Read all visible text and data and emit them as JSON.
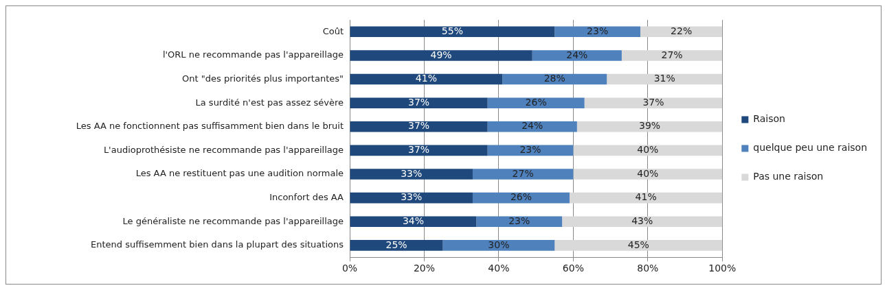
{
  "chart_data": {
    "type": "bar",
    "orientation": "horizontal",
    "stacked": true,
    "categories": [
      "Coût",
      "l'ORL ne recommande pas l'appareillage",
      "Ont \"des priorités plus importantes\"",
      "La surdité n'est pas assez sévère",
      "Les AA ne fonctionnent pas suffisamment bien dans le bruit",
      "L'audioprothésiste ne recommande pas l'appareillage",
      "Les AA ne restituent pas une audition normale",
      "Inconfort des AA",
      "Le généraliste ne recommande pas l'appareillage",
      "Entend suffisemment bien dans la plupart des situations"
    ],
    "series": [
      {
        "name": "Raison",
        "color": "#1f497d",
        "values": [
          55,
          49,
          41,
          37,
          37,
          37,
          33,
          33,
          34,
          25
        ],
        "value_labels": [
          "55%",
          "49%",
          "41%",
          "37%",
          "37%",
          "37%",
          "33%",
          "33%",
          "34%",
          "25%"
        ]
      },
      {
        "name": "quelque peu une raison",
        "color": "#4f81bd",
        "values": [
          23,
          24,
          28,
          26,
          24,
          23,
          27,
          26,
          23,
          30
        ],
        "value_labels": [
          "23%",
          "24%",
          "28%",
          "26%",
          "24%",
          "23%",
          "27%",
          "26%",
          "23%",
          "30%"
        ]
      },
      {
        "name": "Pas une raison",
        "color": "#d9d9d9",
        "values": [
          22,
          27,
          31,
          37,
          39,
          40,
          40,
          41,
          43,
          45
        ],
        "value_labels": [
          "22%",
          "27%",
          "31%",
          "37%",
          "39%",
          "40%",
          "40%",
          "41%",
          "43%",
          "45%"
        ]
      }
    ],
    "xlim": [
      0,
      100
    ],
    "xticks": [
      {
        "value": 0,
        "label": "0%"
      },
      {
        "value": 20,
        "label": "20%"
      },
      {
        "value": 40,
        "label": "40%"
      },
      {
        "value": 60,
        "label": "60%"
      },
      {
        "value": 80,
        "label": "80%"
      },
      {
        "value": 100,
        "label": "100%"
      }
    ],
    "grid": "x",
    "legend": "right"
  }
}
